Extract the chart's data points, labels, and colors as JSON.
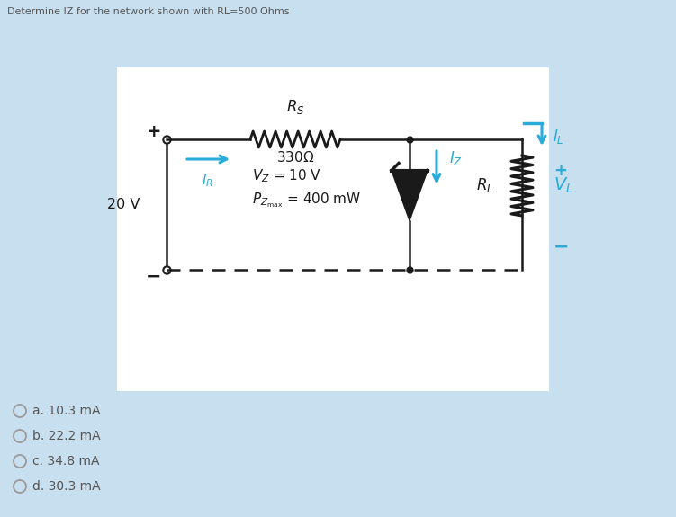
{
  "title": "Determine IZ for the network shown with RL=500 Ohms",
  "background_color": "#c8dff0",
  "circuit_bg": "#ffffff",
  "answer_options": [
    "a. 10.3 mA",
    "b. 22.2 mA",
    "c. 34.8 mA",
    "d. 30.3 mA"
  ],
  "circuit_color": "#1a1a1a",
  "cyan_color": "#29acd9",
  "title_color": "#555555"
}
